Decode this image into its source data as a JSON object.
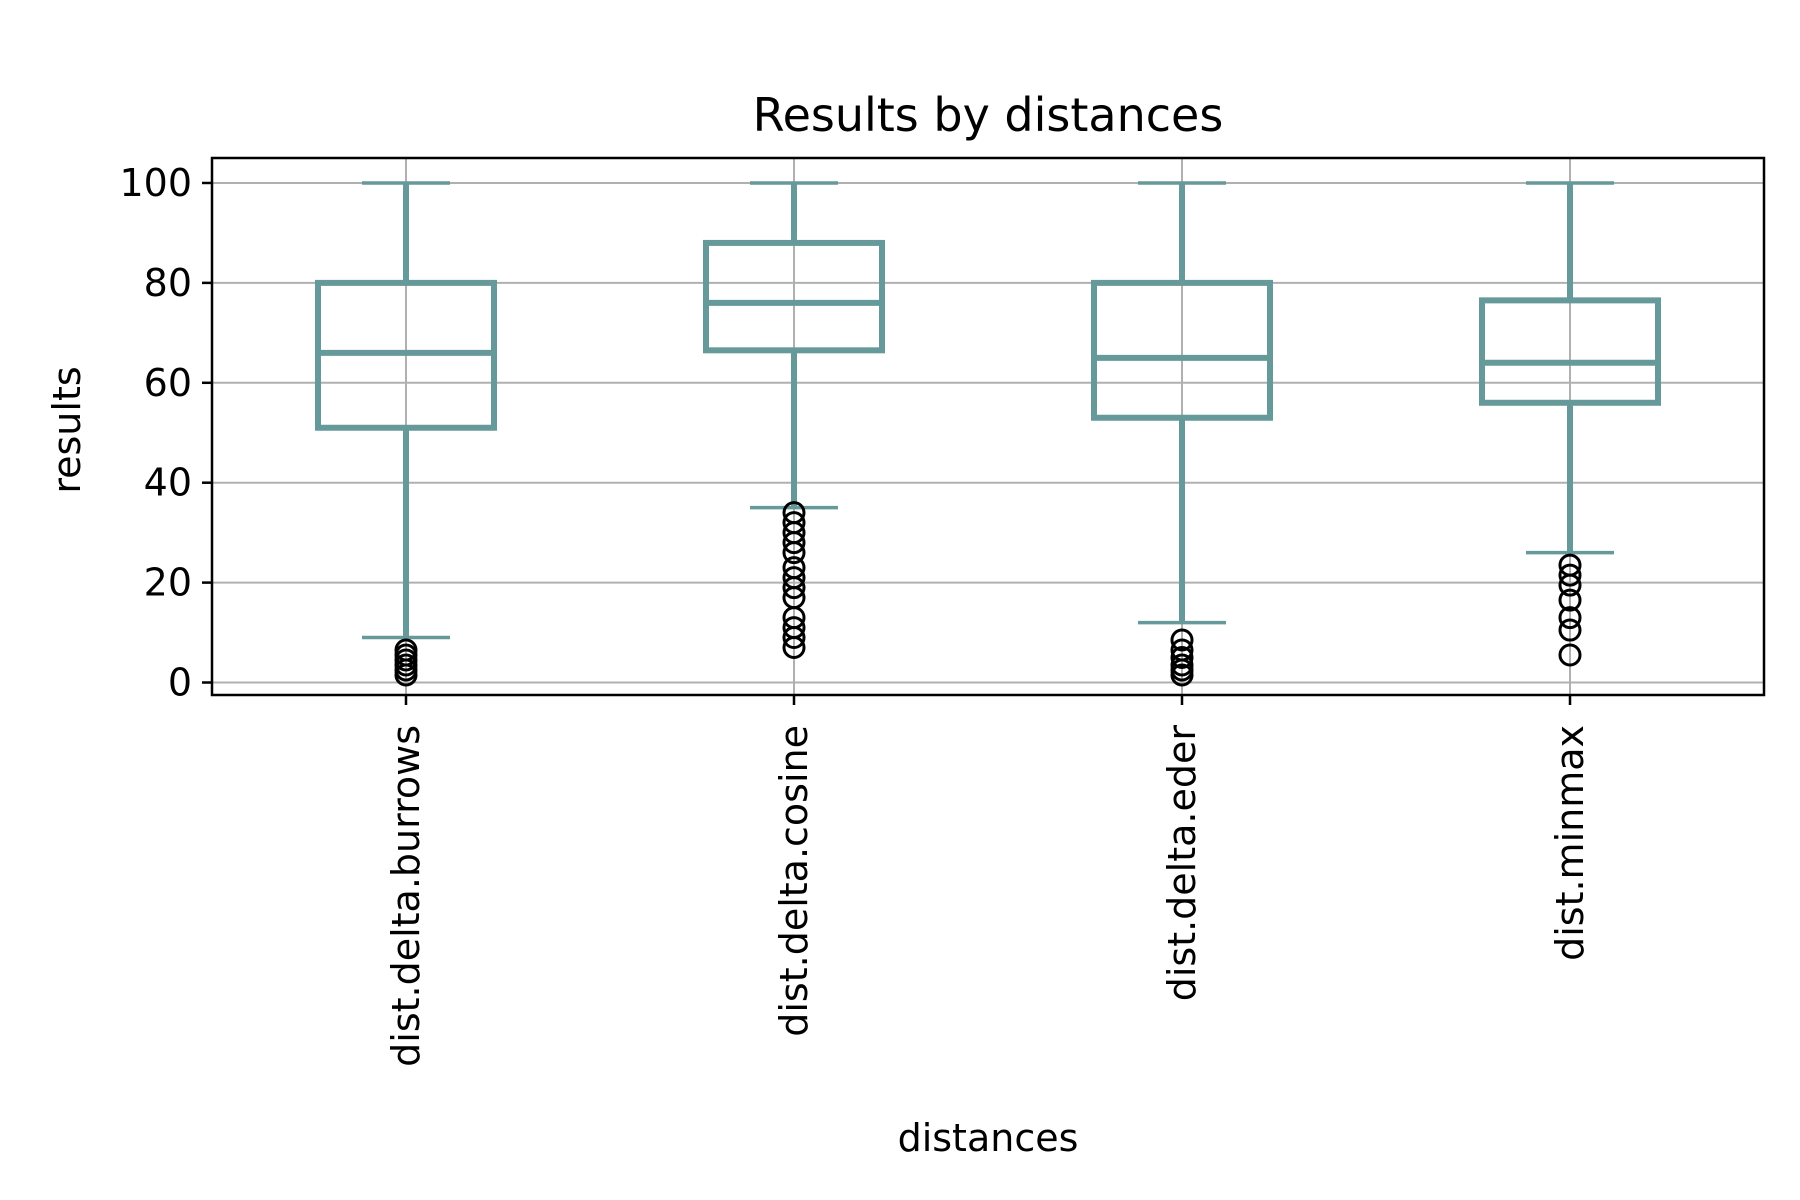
{
  "chart_data": {
    "type": "box",
    "title": "Results by distances",
    "xlabel": "distances",
    "ylabel": "results",
    "ylim": [
      -2.5,
      105
    ],
    "yticks": [
      0,
      20,
      40,
      60,
      80,
      100
    ],
    "grid": true,
    "colors": {
      "box": "#669999",
      "grid": "#b0b0b0",
      "axes": "#000000",
      "outlier": "#000000"
    },
    "categories": [
      "dist.delta.burrows",
      "dist.delta.cosine",
      "dist.delta.eder",
      "dist.minmax"
    ],
    "boxes": [
      {
        "label": "dist.delta.burrows",
        "whisker_low": 9,
        "q1": 51,
        "median": 66,
        "q3": 80,
        "whisker_high": 100,
        "outliers": [
          1.5,
          2.5,
          3.5,
          4.5,
          5.5,
          6.5
        ]
      },
      {
        "label": "dist.delta.cosine",
        "whisker_low": 35,
        "q1": 66.5,
        "median": 76,
        "q3": 88,
        "whisker_high": 100,
        "outliers": [
          7,
          9,
          11,
          13,
          17,
          19,
          21,
          23,
          26,
          28,
          30,
          32,
          34
        ]
      },
      {
        "label": "dist.delta.eder",
        "whisker_low": 12,
        "q1": 53,
        "median": 65,
        "q3": 80,
        "whisker_high": 100,
        "outliers": [
          1.5,
          2.5,
          3.5,
          5,
          6.5,
          8.5
        ]
      },
      {
        "label": "dist.minmax",
        "whisker_low": 26,
        "q1": 56,
        "median": 64,
        "q3": 76.5,
        "whisker_high": 100,
        "outliers": [
          5.5,
          10.5,
          13,
          16.5,
          19.5,
          21.5,
          23.5
        ]
      }
    ]
  }
}
